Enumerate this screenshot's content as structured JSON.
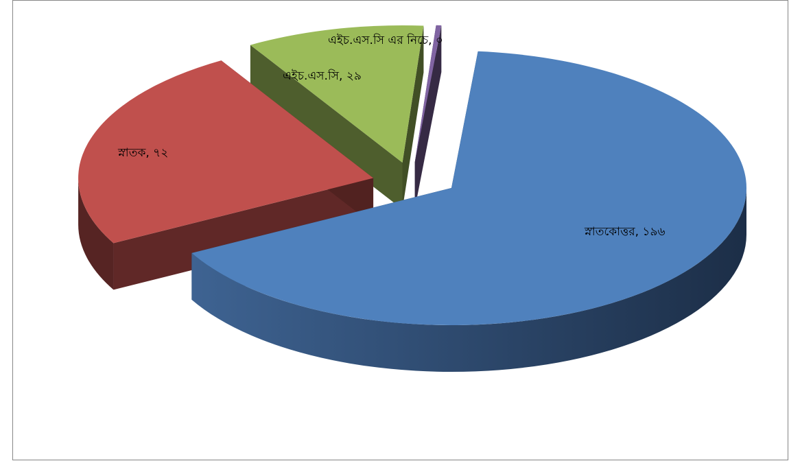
{
  "chart_data": {
    "type": "pie",
    "title": "",
    "categories": [
      "স্নাতকোত্তর",
      "স্নাতক",
      "এইচ.এস.সি",
      "এইচ.এস.সি এর নিচে"
    ],
    "values": [
      196,
      72,
      29,
      0
    ],
    "value_labels": [
      "১৯৬",
      "৭২",
      "২৯",
      "০"
    ],
    "data_labels": [
      "স্নাতকোত্তর, ১৯৬",
      "স্নাতক, ৭২",
      "এইচ.এস.সি, ২৯",
      "এইচ.এস.সি এর নিচে, ০"
    ],
    "colors": [
      "#4F81BD",
      "#C0504D",
      "#9BBB59",
      "#8064A2"
    ],
    "style": "3d-exploded-pie",
    "legend": "none"
  }
}
